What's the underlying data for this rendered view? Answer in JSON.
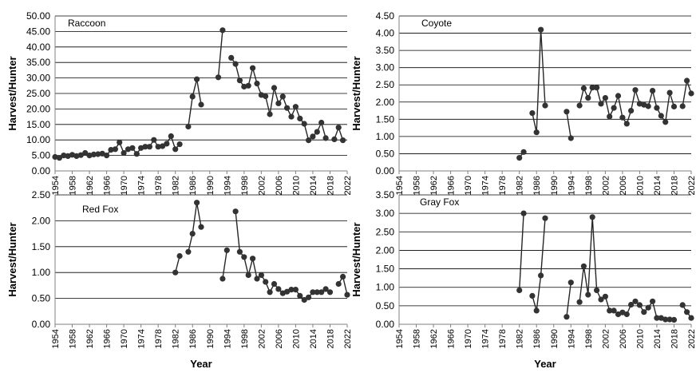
{
  "chart_data": [
    {
      "type": "line",
      "title": "Raccoon",
      "ylabel": "Harvest/Hunter",
      "xlabel": "",
      "ylim": [
        0,
        50
      ],
      "ytick_step": 5,
      "ytick_decimals": 2,
      "xlim": [
        1954,
        2022
      ],
      "xticks": [
        1954,
        1958,
        1962,
        1966,
        1970,
        1974,
        1978,
        1982,
        1986,
        1990,
        1994,
        1998,
        2002,
        2006,
        2010,
        2014,
        2018,
        2022
      ],
      "grid": true,
      "series": [
        {
          "x": [
            1954,
            1955,
            1956,
            1957,
            1958,
            1959,
            1960,
            1961,
            1962,
            1963,
            1964,
            1965,
            1966,
            1967,
            1968,
            1969,
            1970,
            1971,
            1972,
            1973,
            1974,
            1975,
            1976,
            1977,
            1978,
            1979,
            1980,
            1981,
            1982,
            1983,
            1984,
            1985,
            1986,
            1987,
            1988,
            1989,
            1990,
            1991,
            1992,
            1993,
            1994,
            1995,
            1996,
            1997,
            1998,
            1999,
            2000,
            2001,
            2002,
            2003,
            2004,
            2005,
            2006,
            2007,
            2008,
            2009,
            2010,
            2011,
            2012,
            2013,
            2014,
            2015,
            2016,
            2017,
            2018,
            2019,
            2020,
            2021,
            2022
          ],
          "y": [
            4.5,
            4.2,
            5.0,
            4.8,
            5.2,
            4.8,
            5.1,
            5.8,
            5.0,
            5.3,
            5.4,
            5.6,
            5.0,
            6.8,
            7.0,
            9.2,
            5.8,
            7.0,
            7.4,
            5.5,
            7.4,
            7.8,
            7.8,
            10.0,
            7.8,
            8.0,
            8.8,
            11.2,
            7.0,
            8.6,
            null,
            14.3,
            24.0,
            29.6,
            21.4,
            null,
            null,
            null,
            30.2,
            45.4,
            null,
            36.5,
            34.5,
            29.2,
            27.2,
            27.5,
            33.2,
            28.2,
            24.5,
            24.1,
            18.3,
            26.8,
            21.8,
            24.0,
            20.3,
            17.5,
            20.7,
            16.9,
            15.2,
            9.9,
            11.1,
            12.6,
            15.6,
            10.6,
            null,
            10.2,
            14.0,
            9.9,
            null
          ]
        }
      ]
    },
    {
      "type": "line",
      "title": "Coyote",
      "ylabel": "Harvest/Hunter",
      "xlabel": "",
      "ylim": [
        0,
        4.5
      ],
      "ytick_step": 0.5,
      "ytick_decimals": 2,
      "xlim": [
        1954,
        2022
      ],
      "xticks": [
        1954,
        1958,
        1962,
        1966,
        1970,
        1974,
        1978,
        1982,
        1986,
        1990,
        1994,
        1998,
        2002,
        2006,
        2010,
        2014,
        2018,
        2022
      ],
      "grid": true,
      "series": [
        {
          "x": [
            1982,
            1983,
            1984,
            1985,
            1986,
            1987,
            1988,
            1989,
            1990,
            1991,
            1992,
            1993,
            1994,
            1995,
            1996,
            1997,
            1998,
            1999,
            2000,
            2001,
            2002,
            2003,
            2004,
            2005,
            2006,
            2007,
            2008,
            2009,
            2010,
            2011,
            2012,
            2013,
            2014,
            2015,
            2016,
            2017,
            2018,
            2019,
            2020,
            2021,
            2022
          ],
          "y": [
            0.38,
            0.55,
            null,
            1.68,
            1.12,
            4.1,
            1.9,
            null,
            null,
            null,
            null,
            1.72,
            0.95,
            null,
            1.9,
            2.4,
            2.12,
            2.42,
            2.42,
            1.95,
            2.12,
            1.58,
            1.83,
            2.18,
            1.55,
            1.37,
            1.75,
            2.35,
            1.95,
            1.92,
            1.88,
            2.33,
            1.83,
            1.6,
            1.42,
            2.27,
            1.87,
            null,
            1.88,
            2.62,
            2.25
          ]
        }
      ]
    },
    {
      "type": "line",
      "title": "Red Fox",
      "ylabel": "Harvest/Hunter",
      "xlabel": "Year",
      "ylim": [
        0,
        2.5
      ],
      "ytick_step": 0.5,
      "ytick_decimals": 2,
      "xlim": [
        1954,
        2022
      ],
      "xticks": [
        1954,
        1958,
        1962,
        1966,
        1970,
        1974,
        1978,
        1982,
        1986,
        1990,
        1994,
        1998,
        2002,
        2006,
        2010,
        2014,
        2018,
        2022
      ],
      "grid": true,
      "series": [
        {
          "x": [
            1982,
            1983,
            1984,
            1985,
            1986,
            1987,
            1988,
            1989,
            1990,
            1991,
            1992,
            1993,
            1994,
            1995,
            1996,
            1997,
            1998,
            1999,
            2000,
            2001,
            2002,
            2003,
            2004,
            2005,
            2006,
            2007,
            2008,
            2009,
            2010,
            2011,
            2012,
            2013,
            2014,
            2015,
            2016,
            2017,
            2018,
            2019,
            2020,
            2021,
            2022
          ],
          "y": [
            1.0,
            1.32,
            null,
            1.4,
            1.75,
            2.35,
            1.88,
            null,
            null,
            null,
            null,
            0.88,
            1.43,
            null,
            2.18,
            1.4,
            1.3,
            0.95,
            1.27,
            0.88,
            0.95,
            0.82,
            0.62,
            0.78,
            0.68,
            0.6,
            0.63,
            0.67,
            0.67,
            0.55,
            0.47,
            0.52,
            0.62,
            0.62,
            0.62,
            0.68,
            0.62,
            null,
            0.78,
            0.92,
            0.57
          ]
        }
      ]
    },
    {
      "type": "line",
      "title": "Gray Fox",
      "ylabel": "Harvest/Hunter",
      "xlabel": "Year",
      "ylim": [
        0,
        3.5
      ],
      "ytick_step": 0.5,
      "ytick_decimals": 2,
      "xlim": [
        1954,
        2022
      ],
      "xticks": [
        1954,
        1958,
        1962,
        1966,
        1970,
        1974,
        1978,
        1982,
        1986,
        1990,
        1994,
        1998,
        2002,
        2006,
        2010,
        2014,
        2018,
        2022
      ],
      "grid": true,
      "series": [
        {
          "x": [
            1982,
            1983,
            1984,
            1985,
            1986,
            1987,
            1988,
            1989,
            1990,
            1991,
            1992,
            1993,
            1994,
            1995,
            1996,
            1997,
            1998,
            1999,
            2000,
            2001,
            2002,
            2003,
            2004,
            2005,
            2006,
            2007,
            2008,
            2009,
            2010,
            2011,
            2012,
            2013,
            2014,
            2015,
            2016,
            2017,
            2018,
            2019,
            2020,
            2021,
            2022
          ],
          "y": [
            0.92,
            3.0,
            null,
            0.77,
            0.37,
            1.32,
            2.87,
            null,
            null,
            null,
            null,
            0.2,
            1.13,
            null,
            0.6,
            1.57,
            0.8,
            2.9,
            0.92,
            0.67,
            0.75,
            0.37,
            0.37,
            0.27,
            0.32,
            0.27,
            0.53,
            0.62,
            0.52,
            0.33,
            0.45,
            0.62,
            0.17,
            0.17,
            0.13,
            0.13,
            0.12,
            null,
            0.52,
            0.33,
            0.17
          ]
        }
      ]
    }
  ]
}
